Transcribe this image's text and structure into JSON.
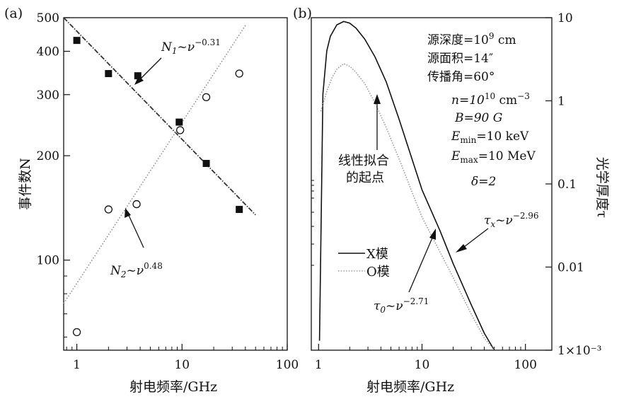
{
  "colors": {
    "ink": "#111111",
    "bg": "#ffffff",
    "o_mode": "#999999"
  },
  "chart_data": [
    {
      "type": "scatter",
      "panel_label": "(a)",
      "xlabel": "射电频率/GHz",
      "ylabel": "事件数N",
      "x_scale": "log",
      "y_scale": "log",
      "xlim": [
        0.75,
        100
      ],
      "ylim": [
        55,
        500
      ],
      "x_ticks": [
        1,
        10,
        100
      ],
      "x_tick_labels": [
        "1",
        "10",
        "100"
      ],
      "y_ticks": [
        100,
        200,
        300,
        400,
        500
      ],
      "y_tick_labels": [
        "100",
        "200",
        "300",
        "400",
        "500"
      ],
      "grid": false,
      "series": [
        {
          "marker": "filled-square",
          "x": [
            1.0,
            2.0,
            3.8,
            9.4,
            17,
            35
          ],
          "y": [
            430,
            345,
            340,
            250,
            190,
            140
          ],
          "fit": {
            "x": [
              0.75,
              50
            ],
            "y": [
              500,
              135
            ],
            "style": "dash-dot",
            "label": "N1~v^-0.31"
          }
        },
        {
          "marker": "open-circle",
          "x": [
            1.0,
            2.0,
            3.7,
            9.6,
            17,
            35
          ],
          "y": [
            62,
            140,
            145,
            237,
            295,
            345
          ],
          "fit": {
            "x": [
              0.75,
              40
            ],
            "y": [
              75,
              475
            ],
            "style": "dotted",
            "label": "N2~v^0.48"
          }
        }
      ],
      "annotations": [
        {
          "text_main": "N",
          "text_sub": "1",
          "text_rest": "~ν",
          "text_sup": "−0.31"
        },
        {
          "text_main": "N",
          "text_sub": "2",
          "text_rest": "~ν",
          "text_sup": "0.48"
        }
      ]
    },
    {
      "type": "line",
      "panel_label": "(b)",
      "xlabel": "射电频率/GHz",
      "ylabel": "光学厚度τ",
      "x_scale": "log",
      "y_scale": "log",
      "xlim": [
        0.85,
        180
      ],
      "ylim": [
        0.001,
        10
      ],
      "x_ticks": [
        1,
        10,
        100
      ],
      "x_tick_labels": [
        "1",
        "10",
        "100"
      ],
      "y_ticks": [
        10,
        1,
        0.1,
        0.01,
        0.001
      ],
      "y_tick_labels": [
        "10",
        "1",
        "0.1",
        "0.01",
        "1×10⁻³"
      ],
      "grid": false,
      "legend": {
        "position": "lower-left",
        "entries": [
          "X模",
          "O模"
        ]
      },
      "series": [
        {
          "name": "X模",
          "style": "solid",
          "x": [
            1.02,
            1.1,
            1.2,
            1.3,
            1.5,
            1.75,
            2.0,
            2.3,
            2.8,
            3.5,
            4.5,
            6,
            8,
            10,
            15,
            20,
            30,
            40,
            50
          ],
          "y": [
            0.0013,
            1.2,
            4.0,
            6.0,
            8.2,
            9.0,
            8.6,
            7.5,
            5.5,
            3.4,
            1.7,
            0.6,
            0.2,
            0.085,
            0.027,
            0.011,
            0.0035,
            0.0016,
            0.001
          ]
        },
        {
          "name": "O模",
          "style": "dotted",
          "x": [
            1.05,
            1.1,
            1.2,
            1.35,
            1.5,
            1.75,
            2.0,
            2.3,
            2.8,
            3.5,
            4.5,
            6,
            8,
            10,
            15,
            20,
            30,
            40,
            50
          ],
          "y": [
            0.75,
            0.9,
            1.3,
            1.9,
            2.4,
            2.8,
            2.6,
            2.2,
            1.6,
            0.95,
            0.48,
            0.2,
            0.08,
            0.04,
            0.015,
            0.0075,
            0.0027,
            0.0014,
            0.001
          ]
        }
      ],
      "parameters": [
        {
          "main": "源深度=10",
          "sup": "9",
          "rest": " cm"
        },
        {
          "main": "源面积=14″"
        },
        {
          "main": "传播角=60°"
        },
        {
          "main": "n=10",
          "sup": "10",
          "rest": " cm",
          "sup2": "−3"
        },
        {
          "main": "B=90 G"
        },
        {
          "main": "E",
          "sub": "min",
          "rest": "=10 keV"
        },
        {
          "main": "E",
          "sub": "max",
          "rest": "=10 MeV"
        },
        {
          "main": "δ=2"
        }
      ],
      "annotations": [
        {
          "line1": "线性拟合",
          "line2": "的起点"
        },
        {
          "text_main": "τ",
          "text_sub": "x",
          "text_rest": "~ν",
          "text_sup": "−2.96"
        },
        {
          "text_main": "τ",
          "text_sub": "0",
          "text_rest": "~ν",
          "text_sup": "−2.71"
        }
      ]
    }
  ]
}
